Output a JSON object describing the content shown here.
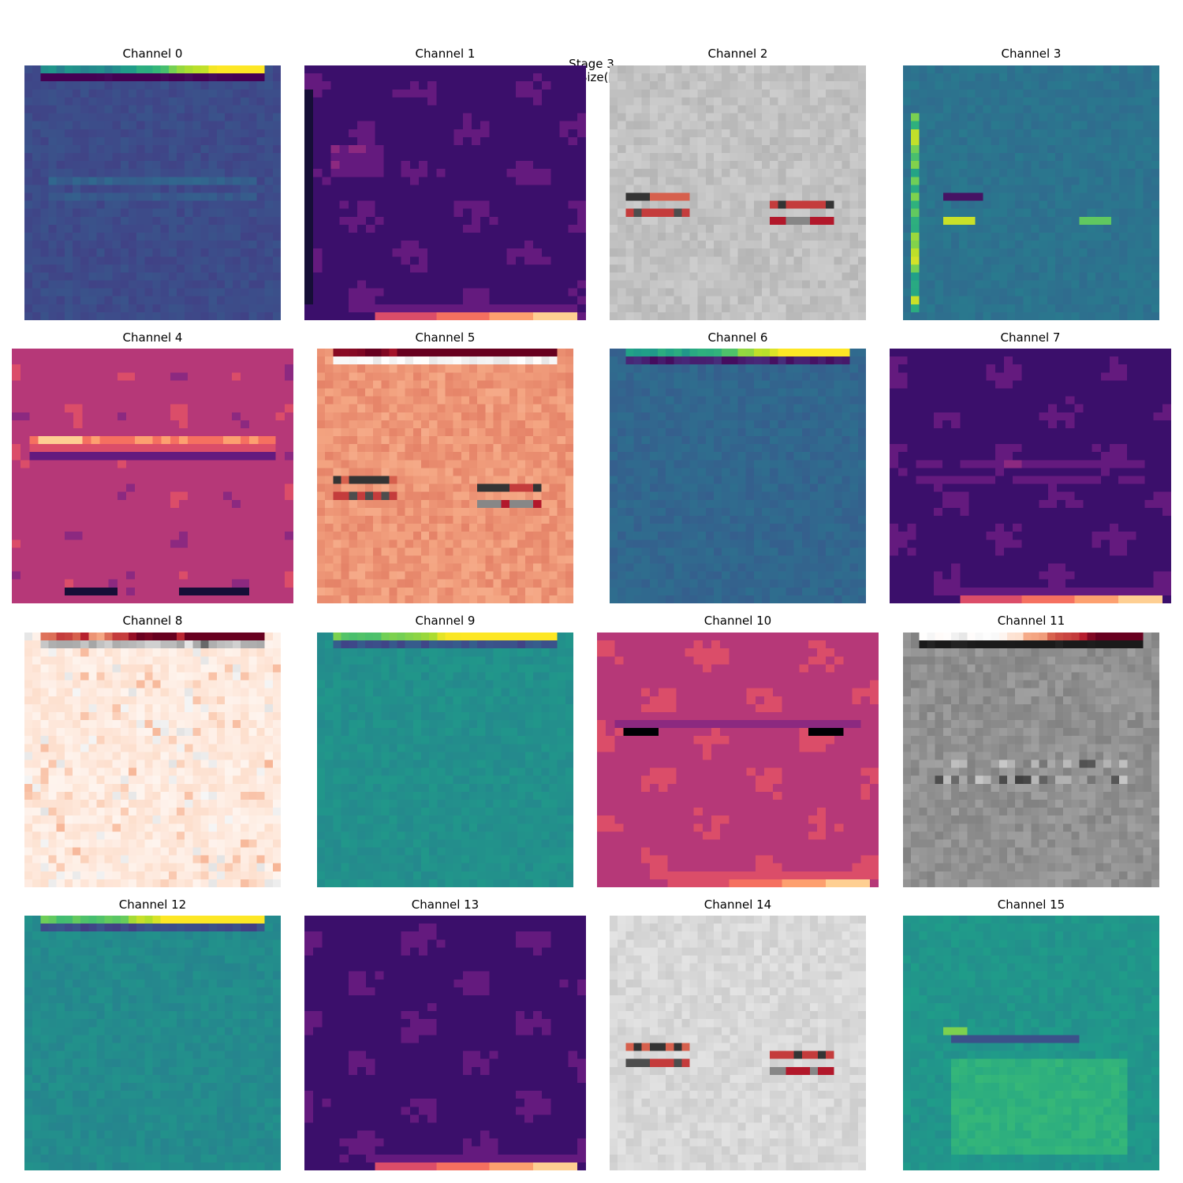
{
  "figure": {
    "title": "Stage 3",
    "subtitle": "Shape: torch.Size([16, 32, 32])"
  },
  "panels": [
    {
      "title": "Channel 0",
      "colormap": "viridis",
      "render": "pixel",
      "base": 0.23,
      "top_band": true,
      "features": "horizontal-band"
    },
    {
      "title": "Channel 1",
      "colormap": "magma",
      "render": "contour",
      "base": 0.22,
      "bottom_glow": true,
      "features": "left-hotspot"
    },
    {
      "title": "Channel 2",
      "colormap": "RdGy",
      "render": "pixel",
      "base": 0.32,
      "features": "dark-blobs"
    },
    {
      "title": "Channel 3",
      "colormap": "viridis",
      "render": "pixel",
      "base": 0.38,
      "features": "yellow-edges"
    },
    {
      "title": "Channel 4",
      "colormap": "magma",
      "render": "contour",
      "base": 0.5,
      "features": "bright-band"
    },
    {
      "title": "Channel 5",
      "colormap": "RdGy",
      "render": "pixel",
      "base": 0.72,
      "top_band": true,
      "features": "dark-blobs"
    },
    {
      "title": "Channel 6",
      "colormap": "viridis",
      "render": "pixel",
      "base": 0.33,
      "top_band": true
    },
    {
      "title": "Channel 7",
      "colormap": "magma",
      "render": "contour",
      "base": 0.22,
      "bottom_glow": true,
      "features": "faint-band"
    },
    {
      "title": "Channel 8",
      "colormap": "RdGy",
      "render": "pixel",
      "base": 0.56,
      "top_band": true,
      "features": "light-noise"
    },
    {
      "title": "Channel 9",
      "colormap": "viridis",
      "render": "pixel",
      "base": 0.5,
      "top_band": true
    },
    {
      "title": "Channel 10",
      "colormap": "magma",
      "render": "contour",
      "base": 0.52,
      "bottom_glow": true,
      "features": "dark-band"
    },
    {
      "title": "Channel 11",
      "colormap": "RdGy",
      "render": "pixel",
      "base": 0.22,
      "top_band": true,
      "features": "mid-band"
    },
    {
      "title": "Channel 12",
      "colormap": "viridis",
      "render": "pixel",
      "base": 0.48,
      "top_band": true
    },
    {
      "title": "Channel 13",
      "colormap": "magma",
      "render": "contour",
      "base": 0.22,
      "bottom_glow": true
    },
    {
      "title": "Channel 14",
      "colormap": "RdGy",
      "render": "pixel",
      "base": 0.38,
      "features": "dark-blobs"
    },
    {
      "title": "Channel 15",
      "colormap": "viridis",
      "render": "pixel",
      "base": 0.52,
      "features": "bright-center"
    }
  ]
}
